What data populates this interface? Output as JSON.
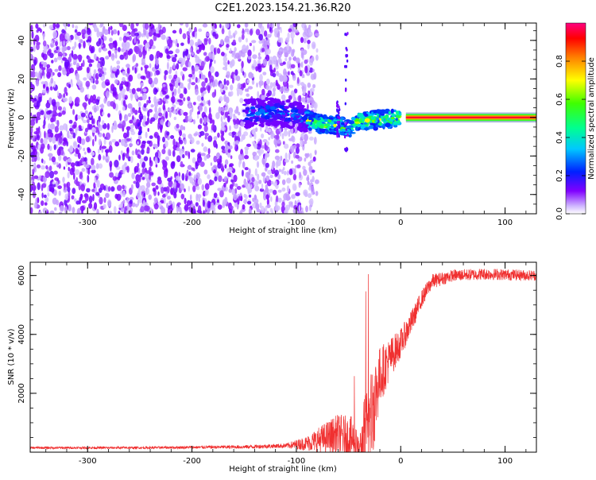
{
  "title": "C2E1.2023.154.21.36.R20",
  "chart_data": [
    {
      "type": "heatmap",
      "xlabel": "Height of straight line (km)",
      "ylabel": "Frequency (Hz)",
      "xlim": [
        -355,
        130
      ],
      "ylim": [
        -50,
        49
      ],
      "xticks": [
        -300,
        -200,
        -100,
        0,
        100
      ],
      "yticks": [
        -40,
        -20,
        0,
        20,
        40
      ],
      "colorbar": {
        "label": "Normalized spectral amplitude",
        "range": [
          0,
          1
        ],
        "ticks": [
          "0.0",
          "0.2",
          "0.4",
          "0.6",
          "0.8"
        ],
        "tick_values": [
          0,
          0.2,
          0.4,
          0.6,
          0.8
        ]
      },
      "features": [
        {
          "x_range": [
            -355,
            -100
          ],
          "freq_range": [
            -50,
            49
          ],
          "amplitude": [
            0.0,
            0.15
          ]
        },
        {
          "x_range": [
            -150,
            -90
          ],
          "freq_range": [
            -8,
            10
          ],
          "amplitude": [
            0.15,
            0.35
          ]
        },
        {
          "x_range": [
            -90,
            0
          ],
          "freq_range": [
            -12,
            6
          ],
          "amplitude": [
            0.3,
            0.8
          ]
        },
        {
          "x_range": [
            5,
            130
          ],
          "freq_range": [
            -1.5,
            1.5
          ],
          "amplitude": [
            0.8,
            1.0
          ]
        }
      ],
      "ridge": {
        "x": [
          -150,
          -120,
          -100,
          -80,
          -60,
          -50,
          -40,
          -20,
          0,
          5
        ],
        "freq": [
          2,
          3,
          1,
          -3,
          -4,
          -6,
          -2,
          -1,
          0,
          0
        ]
      }
    },
    {
      "type": "line",
      "xlabel": "Height of straight line (km)",
      "ylabel": "SNR (10 * v/v)",
      "xlim": [
        -355,
        130
      ],
      "ylim": [
        0,
        6450
      ],
      "xticks": [
        -300,
        -200,
        -100,
        0,
        100
      ],
      "yticks": [
        2000,
        4000,
        6000
      ],
      "color": "#f03030",
      "envelope": {
        "x": [
          -355,
          -250,
          -150,
          -110,
          -90,
          -75,
          -60,
          -45,
          -40,
          -35,
          -30,
          -25,
          -20,
          -10,
          0,
          10,
          20,
          30,
          50,
          80,
          130
        ],
        "base": [
          150,
          150,
          180,
          220,
          300,
          450,
          600,
          400,
          100,
          300,
          900,
          1800,
          2600,
          3200,
          3700,
          4400,
          5200,
          5800,
          6000,
          6050,
          6000
        ],
        "noise": [
          40,
          40,
          60,
          80,
          250,
          500,
          700,
          800,
          300,
          1600,
          1800,
          1500,
          1000,
          700,
          500,
          400,
          300,
          250,
          200,
          200,
          180
        ]
      }
    }
  ]
}
